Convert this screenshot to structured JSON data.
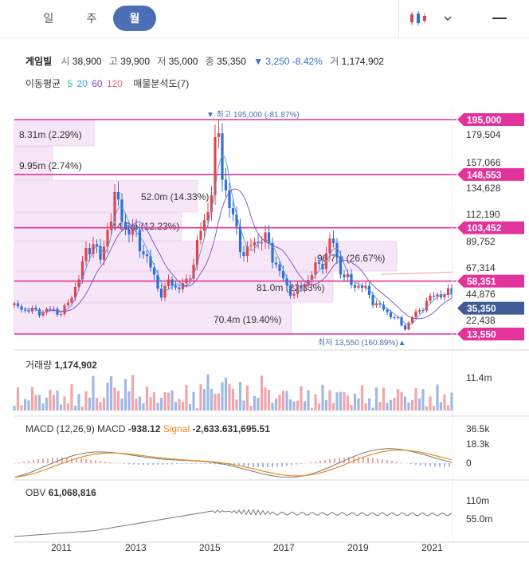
{
  "tabs": [
    {
      "label": "일",
      "active": false
    },
    {
      "label": "주",
      "active": false
    },
    {
      "label": "월",
      "active": true
    }
  ],
  "quote": {
    "name": "게임빌",
    "open_label": "시",
    "open": "38,900",
    "high_label": "고",
    "high": "39,900",
    "low_label": "저",
    "low": "35,000",
    "close_label": "종",
    "close": "35,350",
    "change": "▼ 3,250",
    "change_pct": "-8.42%",
    "volume_label": "거",
    "volume": "1,174,902"
  },
  "indicators": {
    "ma_label": "이동평균",
    "ma": [
      {
        "label": "5",
        "color": "#2bbcb0"
      },
      {
        "label": "20",
        "color": "#4a9be0"
      },
      {
        "label": "60",
        "color": "#7b4fc0"
      },
      {
        "label": "120",
        "color": "#e06a7a"
      }
    ],
    "profile_label": "매물분석도(7)"
  },
  "price_axis": [
    "179,504",
    "157,066",
    "134,628",
    "112,190",
    "89,752",
    "67,314",
    "44,876",
    "22,438"
  ],
  "level_tags": [
    {
      "label": "195,000",
      "price": 195000
    },
    {
      "label": "148,553",
      "price": 148553
    },
    {
      "label": "103,452",
      "price": 103452
    },
    {
      "label": "58,351",
      "price": 58351
    },
    {
      "label": "13,550",
      "price": 13550
    }
  ],
  "current_tag": {
    "label": "35,350",
    "price": 35350
  },
  "high_annotation": "▼ 최고 195,000 (-81.87%)",
  "low_annotation": "최저 13,550 (160.89%)▲",
  "volume_profile": [
    {
      "label": "8.31m (2.29%)",
      "pct": 2.29
    },
    {
      "label": "9.95m (2.74%)",
      "pct": 2.74
    },
    {
      "label": "52.0m (14.33%)",
      "pct": 14.33
    },
    {
      "label": "44.3m (12.23%)",
      "pct": 12.23
    },
    {
      "label": "96.7m (26.67%)",
      "pct": 26.67
    },
    {
      "label": "81.0m (22.33%)",
      "pct": 22.33
    },
    {
      "label": "70.4m (19.40%)",
      "pct": 19.4
    }
  ],
  "volume_panel": {
    "label": "거래량",
    "value": "1,174,902",
    "axis": [
      "11.4m"
    ]
  },
  "macd_panel": {
    "label": "MACD (12,26,9)",
    "macd_label": "MACD",
    "macd_value": "-938.12",
    "signal_label": "Signal",
    "signal_value": "-2,633.631,695.51",
    "axis": [
      "36.5k",
      "18.3k",
      "0"
    ]
  },
  "obv_panel": {
    "label": "OBV",
    "value": "61,068,816",
    "axis": [
      "110m",
      "55.0m"
    ]
  },
  "x_axis": [
    "2011",
    "2013",
    "2015",
    "2017",
    "2019",
    "2021"
  ],
  "colors": {
    "up": "#e0454f",
    "down": "#2f6fd6",
    "level": "#e2339a",
    "current": "#3f5a96",
    "accent": "#4a6fb5"
  }
}
